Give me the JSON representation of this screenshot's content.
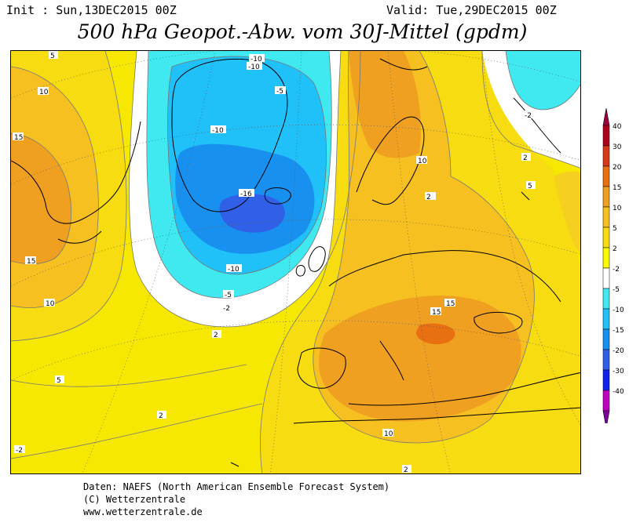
{
  "header": {
    "init": "Init : Sun,13DEC2015 00Z",
    "valid": "Valid: Tue,29DEC2015 00Z",
    "title": "500 hPa Geopot.-Abw. vom 30J-Mittel (gpdm)"
  },
  "footer": {
    "line1": "Daten: NAEFS (North American Ensemble Forecast System)",
    "line2": "(C) Wetterzentrale",
    "line3": "www.wetterzentrale.de"
  },
  "legend": {
    "stops": [
      {
        "label": "40",
        "color": "#b00020"
      },
      {
        "label": "30",
        "color": "#d83818"
      },
      {
        "label": "20",
        "color": "#e87010"
      },
      {
        "label": "15",
        "color": "#f0a020"
      },
      {
        "label": "10",
        "color": "#f5c020"
      },
      {
        "label": "5",
        "color": "#f6dc10"
      },
      {
        "label": "2",
        "color": "#fafa00"
      },
      {
        "label": "-2",
        "color": "#ffffff"
      },
      {
        "label": "-5",
        "color": "#40e8f0"
      },
      {
        "label": "-10",
        "color": "#20c0f8"
      },
      {
        "label": "-15",
        "color": "#1890f0"
      },
      {
        "label": "-20",
        "color": "#3060e8"
      },
      {
        "label": "-30",
        "color": "#1020f0"
      },
      {
        "label": "-40",
        "color": "#c000c0"
      }
    ],
    "top_arrow_color": "#a00040",
    "bottom_arrow_color": "#8000a0"
  },
  "map": {
    "contour_labels": [
      "5",
      "10",
      "15",
      "15",
      "10",
      "2",
      "5",
      "2",
      "-10",
      "-10",
      "-5",
      "-10",
      "-16",
      "-10",
      "-5",
      "-2",
      "-2",
      "2",
      "10",
      "5",
      "2",
      "15",
      "15",
      "10",
      "2",
      "-2"
    ]
  }
}
